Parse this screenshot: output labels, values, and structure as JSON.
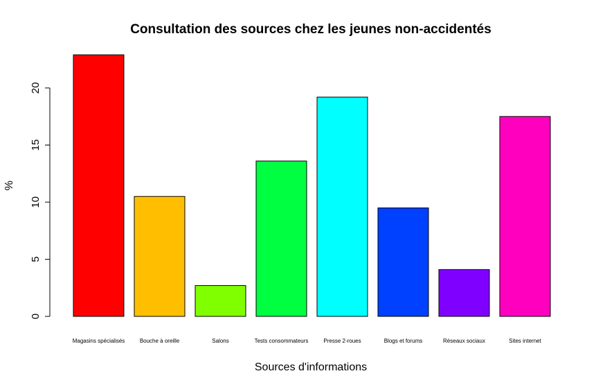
{
  "chart_data": {
    "type": "bar",
    "title": "Consultation des sources chez les jeunes non-accidentés",
    "xlabel": "Sources d'informations",
    "ylabel": "%",
    "categories": [
      "Magasins spécialisés",
      "Bouche à oreille",
      "Salons",
      "Tests consommateurs",
      "Presse 2-roues",
      "Blogs et forums",
      "Réseaux sociaux",
      "Sites internet"
    ],
    "values": [
      22.9,
      10.5,
      2.7,
      13.6,
      19.2,
      9.5,
      4.1,
      17.5
    ],
    "colors": [
      "#ff0000",
      "#ffbf00",
      "#80ff00",
      "#00ff40",
      "#00ffff",
      "#0040ff",
      "#8000ff",
      "#ff00bf"
    ],
    "yticks": [
      0,
      5,
      10,
      15,
      20
    ],
    "ylim": [
      0,
      23.5
    ],
    "grid": false,
    "legend": "none"
  }
}
